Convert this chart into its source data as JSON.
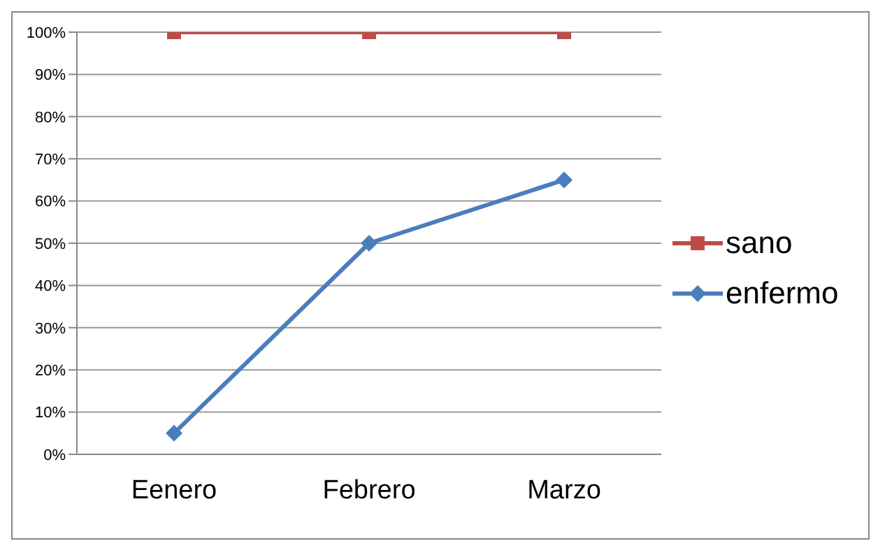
{
  "chart_data": {
    "type": "line",
    "categories": [
      "Eenero",
      "Febrero",
      "Marzo"
    ],
    "series": [
      {
        "name": "sano",
        "color": "#be4b48",
        "values": [
          100,
          100,
          100
        ],
        "marker": "square"
      },
      {
        "name": "enfermo",
        "color": "#4a7ebb",
        "values": [
          5,
          50,
          65
        ],
        "marker": "diamond"
      }
    ],
    "ylim": [
      0,
      100
    ],
    "yticks": [
      {
        "value": 0,
        "label": "0%"
      },
      {
        "value": 10,
        "label": "10%"
      },
      {
        "value": 20,
        "label": "20%"
      },
      {
        "value": 30,
        "label": "30%"
      },
      {
        "value": 40,
        "label": "40%"
      },
      {
        "value": 50,
        "label": "50%"
      },
      {
        "value": 60,
        "label": "60%"
      },
      {
        "value": 70,
        "label": "70%"
      },
      {
        "value": 80,
        "label": "80%"
      },
      {
        "value": 90,
        "label": "90%"
      },
      {
        "value": 100,
        "label": "100%"
      }
    ],
    "grid": "y",
    "legend": "right",
    "line_style": "solid"
  }
}
